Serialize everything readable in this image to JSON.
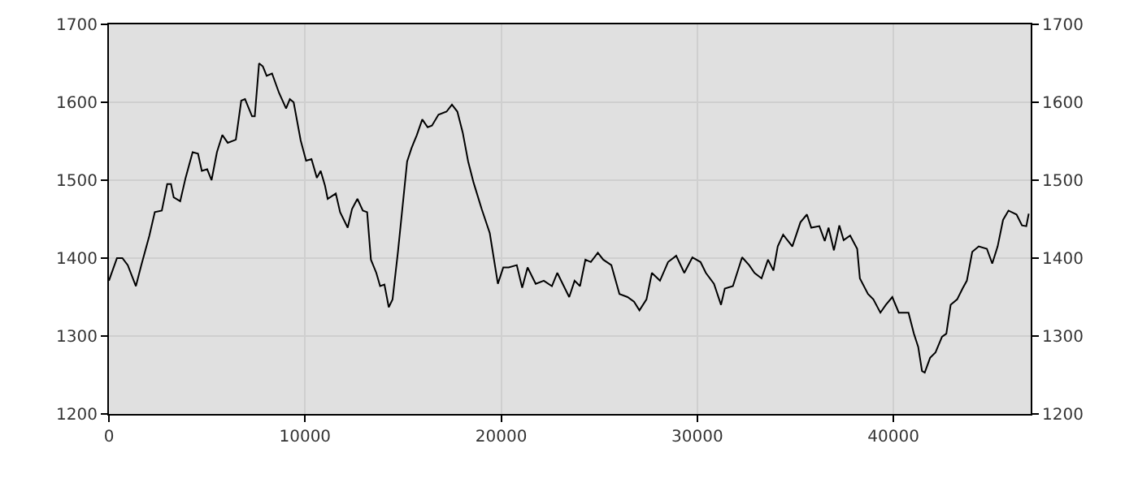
{
  "chart_data": {
    "type": "line",
    "xlim": [
      0,
      47000
    ],
    "xticks": [
      0,
      10000,
      20000,
      30000,
      40000
    ],
    "ylim": [
      1200,
      1700
    ],
    "yticks": [
      1200,
      1300,
      1400,
      1500,
      1600,
      1700
    ],
    "y2lim": [
      1200,
      1700
    ],
    "y2ticks": [
      1200,
      1300,
      1400,
      1500,
      1600,
      1700
    ],
    "grid": true,
    "legend": false,
    "marker": "none",
    "line_style": "solid",
    "series": [
      {
        "color": "#000000",
        "x": [
          0,
          410,
          686,
          961,
          1375,
          1650,
          2063,
          2339,
          2697,
          2972,
          3165,
          3303,
          3634,
          3909,
          4267,
          4543,
          4736,
          5011,
          5232,
          5507,
          5783,
          6058,
          6471,
          6747,
          6940,
          7298,
          7436,
          7656,
          7849,
          8042,
          8317,
          8675,
          9033,
          9226,
          9419,
          9777,
          10053,
          10328,
          10604,
          10797,
          11017,
          11155,
          11568,
          11788,
          12174,
          12395,
          12670,
          12946,
          13166,
          13359,
          13634,
          13827,
          14048,
          14268,
          14461,
          14737,
          15012,
          15205,
          15426,
          15701,
          15977,
          16252,
          16472,
          16803,
          17215,
          17490,
          17766,
          18041,
          18317,
          18592,
          19006,
          19419,
          19832,
          20108,
          20383,
          20796,
          21072,
          21347,
          21761,
          22174,
          22587,
          22863,
          23193,
          23469,
          23744,
          24020,
          24295,
          24571,
          24929,
          25204,
          25618,
          26031,
          26444,
          26775,
          27050,
          27408,
          27684,
          28097,
          28510,
          28924,
          29337,
          29750,
          30164,
          30439,
          30852,
          31210,
          31403,
          31816,
          32285,
          32643,
          32918,
          33276,
          33606,
          33882,
          34102,
          34377,
          34846,
          35259,
          35590,
          35810,
          36223,
          36499,
          36692,
          36967,
          37243,
          37463,
          37794,
          38152,
          38290,
          38703,
          38978,
          39336,
          39612,
          39943,
          40273,
          40769,
          41045,
          41265,
          41458,
          41596,
          41871,
          42147,
          42477,
          42698,
          42918,
          43249,
          43524,
          43744,
          44020,
          44351,
          44764,
          45039,
          45315,
          45590,
          45866,
          46279,
          46555,
          46775,
          46900
        ],
        "values": [
          1371,
          1400,
          1400,
          1391,
          1364,
          1391,
          1429,
          1459,
          1461,
          1495,
          1495,
          1478,
          1473,
          1503,
          1536,
          1534,
          1512,
          1514,
          1500,
          1536,
          1558,
          1548,
          1552,
          1602,
          1604,
          1582,
          1582,
          1650,
          1646,
          1634,
          1637,
          1612,
          1592,
          1604,
          1600,
          1551,
          1525,
          1527,
          1503,
          1512,
          1493,
          1476,
          1483,
          1459,
          1439,
          1463,
          1476,
          1461,
          1459,
          1398,
          1381,
          1364,
          1366,
          1337,
          1347,
          1408,
          1476,
          1524,
          1541,
          1558,
          1578,
          1568,
          1570,
          1584,
          1588,
          1597,
          1588,
          1561,
          1524,
          1497,
          1463,
          1432,
          1367,
          1388,
          1388,
          1391,
          1362,
          1388,
          1367,
          1371,
          1364,
          1381,
          1364,
          1350,
          1371,
          1364,
          1398,
          1395,
          1407,
          1398,
          1391,
          1354,
          1350,
          1344,
          1333,
          1347,
          1381,
          1371,
          1395,
          1403,
          1381,
          1401,
          1395,
          1381,
          1367,
          1340,
          1361,
          1364,
          1401,
          1391,
          1381,
          1374,
          1398,
          1384,
          1415,
          1430,
          1415,
          1446,
          1456,
          1439,
          1441,
          1422,
          1439,
          1410,
          1442,
          1423,
          1429,
          1412,
          1374,
          1354,
          1347,
          1330,
          1340,
          1350,
          1330,
          1330,
          1303,
          1286,
          1255,
          1253,
          1272,
          1279,
          1299,
          1303,
          1340,
          1347,
          1361,
          1371,
          1408,
          1415,
          1412,
          1393,
          1415,
          1449,
          1461,
          1456,
          1442,
          1441,
          1457
        ]
      }
    ]
  }
}
